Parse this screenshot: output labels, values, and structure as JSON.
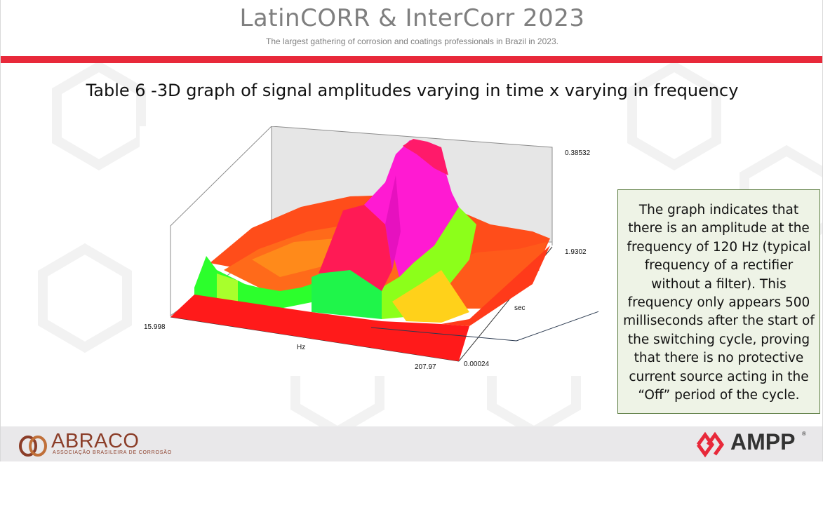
{
  "header": {
    "title": "LatinCORR & InterCorr 2023",
    "subtitle": "The largest gathering of corrosion and coatings professionals in Brazil in 2023."
  },
  "slide": {
    "heading": "Table 6 -3D graph of signal amplitudes varying in time x varying in frequency"
  },
  "chart_data": {
    "type": "surface3d",
    "title": "",
    "x_axis": {
      "label": "Hz",
      "min_label": "15.998",
      "max_label": "207.97"
    },
    "y_axis": {
      "label": "sec",
      "min_label": "0.00024",
      "max_label": "1.9302"
    },
    "z_axis": {
      "max_label": "0.38532"
    },
    "notes": "Amplitude peak near 120 Hz appearing after ~0.5 s"
  },
  "note": {
    "text": "The graph indicates that there is an amplitude at the frequency of 120 Hz (typical frequency of a rectifier without a filter). This frequency only appears 500 milliseconds after the start of the switching cycle, proving that there is no protective current source acting in the “Off” period of the cycle."
  },
  "footer": {
    "left_logo": "ABRACO",
    "left_tagline": "ASSOCIAÇÃO BRASILEIRA DE CORROSÃO",
    "right_logo": "AMPP",
    "right_reg": "®"
  },
  "colors": {
    "accent_red": "#e8293a",
    "brand_brown": "#8b3d28",
    "note_bg": "#eef3e6",
    "note_border": "#5a7b3f"
  }
}
